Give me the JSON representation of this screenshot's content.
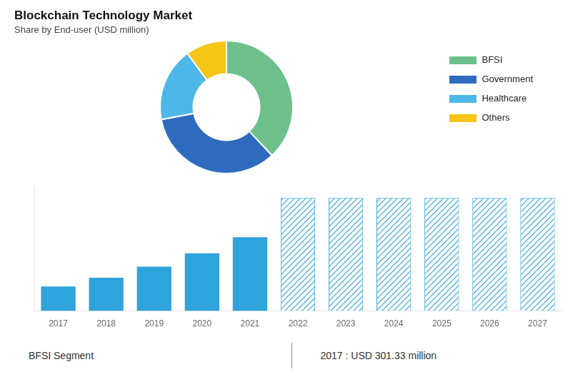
{
  "chart_data": [
    {
      "type": "doughnut",
      "title": "Blockchain Technology Market",
      "subtitle": "Share by End-user (USD million)",
      "categories": [
        "BFSI",
        "Government",
        "Healthcare",
        "Others"
      ],
      "values": [
        38,
        34,
        18,
        10
      ],
      "colors": [
        "#6dc08a",
        "#2e6bbf",
        "#4db8e8",
        "#f5c518"
      ],
      "legend": "right"
    },
    {
      "type": "bar",
      "categories": [
        "2017",
        "2018",
        "2019",
        "2020",
        "2021",
        "2022",
        "2023",
        "2024",
        "2025",
        "2026",
        "2027"
      ],
      "series": [
        {
          "color": "#2fa3dc",
          "values": [
            0.2,
            0.27,
            0.36,
            0.47,
            0.6,
            null,
            null,
            null,
            null,
            null,
            null
          ]
        },
        {
          "color": "#2fa3dc",
          "values": [
            null,
            null,
            null,
            null,
            null,
            0.92,
            0.92,
            0.92,
            0.92,
            0.92,
            0.92
          ]
        }
      ],
      "ylim": [
        0,
        1.02
      ],
      "yticks": [],
      "grid": false,
      "tick_labels": "x",
      "annotations": [
        "BFSI Segment",
        "2017 : USD 301.33 million"
      ]
    }
  ]
}
